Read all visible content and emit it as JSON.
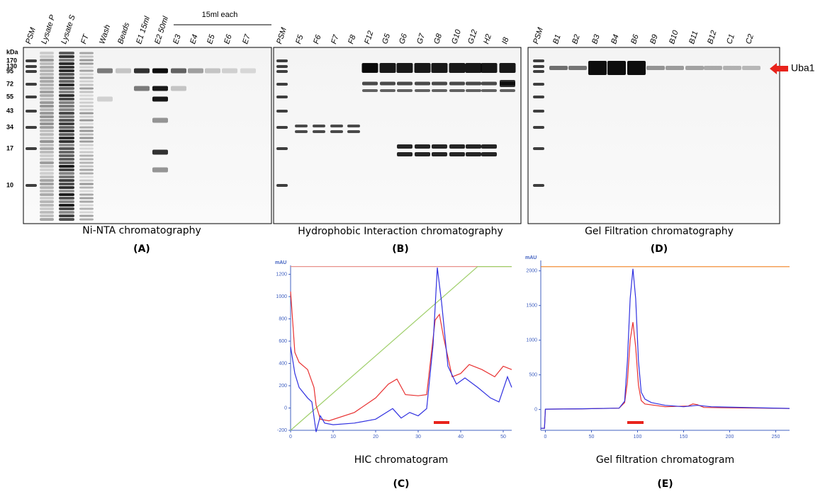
{
  "panels": {
    "A": {
      "lanes": [
        "PSM",
        "Lysate P",
        "Lysate S",
        "FT",
        "Wash",
        "Beads",
        "E1 15ml",
        "E2 50ml",
        "E3",
        "E4",
        "E5",
        "E6",
        "E7"
      ],
      "bracket_label": "15ml each",
      "markers": [
        "kDa",
        "170",
        "130",
        "95",
        "72",
        "55",
        "43",
        "34",
        "17",
        "10"
      ],
      "caption": "Ni-NTA chromatography",
      "label": "(A)"
    },
    "B": {
      "lanes": [
        "PSM",
        "F5",
        "F6",
        "F7",
        "F8",
        "F12",
        "G5",
        "G6",
        "G7",
        "G8",
        "G10",
        "G12",
        "H2",
        "I8"
      ],
      "caption": "Hydrophobic Interaction chromatography",
      "label": "(B)"
    },
    "D": {
      "lanes": [
        "PSM",
        "B1",
        "B2",
        "B3",
        "B4",
        "B6",
        "B9",
        "B10",
        "B11",
        "B12",
        "C1",
        "C2"
      ],
      "arrow_label": "Uba1",
      "caption": "Gel Filtration chromatography",
      "label": "(D)"
    }
  },
  "chart_data": [
    {
      "type": "line",
      "title": "HIC chromatogram",
      "panel_label": "(C)",
      "y_label": "mAU",
      "xlim": [
        0,
        52
      ],
      "xticks": [
        0,
        10,
        20,
        30,
        40,
        50
      ],
      "ylim": [
        -200,
        1280
      ],
      "yticks": [
        -200,
        0,
        200,
        400,
        600,
        800,
        1000,
        1200
      ],
      "series": [
        {
          "color": "#e8908a",
          "x": [
            0,
            52
          ],
          "values": [
            1270,
            1270
          ]
        },
        {
          "color": "#9fcf6a",
          "x": [
            0,
            44,
            52
          ],
          "values": [
            -200,
            1270,
            1270
          ]
        },
        {
          "color": "#e83030",
          "x": [
            0,
            1,
            2,
            4,
            5.5,
            6,
            7,
            9,
            15,
            20,
            23,
            25,
            27,
            30,
            32,
            34,
            35,
            36,
            38,
            40,
            42,
            45,
            48,
            50,
            52
          ],
          "values": [
            1045,
            500,
            410,
            345,
            185,
            25,
            -100,
            -115,
            -40,
            90,
            215,
            260,
            120,
            110,
            120,
            790,
            840,
            630,
            280,
            310,
            390,
            345,
            280,
            375,
            345
          ]
        },
        {
          "color": "#3030e0",
          "x": [
            0,
            1,
            2,
            4,
            5,
            6,
            7,
            8,
            10,
            15,
            20,
            24,
            26,
            28,
            30,
            32,
            33.5,
            34.5,
            35.5,
            37,
            39,
            41,
            44,
            47,
            49,
            51,
            52
          ],
          "values": [
            550,
            310,
            185,
            90,
            55,
            -215,
            -70,
            -135,
            -150,
            -135,
            -100,
            -5,
            -90,
            -40,
            -70,
            -5,
            565,
            1260,
            950,
            375,
            215,
            270,
            185,
            90,
            55,
            280,
            185
          ]
        }
      ]
    },
    {
      "type": "line",
      "title": "Gel filtration chromatogram",
      "panel_label": "(E)",
      "y_label": "mAU",
      "xlim": [
        -5,
        265
      ],
      "xticks": [
        0,
        50,
        100,
        150,
        200,
        250
      ],
      "ylim": [
        -300,
        2150
      ],
      "yticks": [
        0,
        500,
        1000,
        1500,
        2000
      ],
      "series": [
        {
          "color": "#f08020",
          "x": [
            -5,
            265
          ],
          "values": [
            2060,
            2060
          ]
        },
        {
          "color": "#e83030",
          "x": [
            -5,
            -1,
            0,
            40,
            80,
            86,
            89,
            92,
            95,
            98,
            101,
            104,
            108,
            130,
            155,
            160,
            165,
            172,
            265
          ],
          "values": [
            -270,
            -270,
            5,
            10,
            20,
            100,
            400,
            1000,
            1260,
            900,
            350,
            130,
            80,
            40,
            50,
            80,
            70,
            30,
            15
          ]
        },
        {
          "color": "#3030e0",
          "x": [
            -5,
            -1,
            0,
            40,
            80,
            86,
            89,
            92,
            95,
            98,
            101,
            104,
            108,
            115,
            130,
            150,
            165,
            180,
            265
          ],
          "values": [
            -270,
            -270,
            5,
            10,
            20,
            120,
            700,
            1600,
            2030,
            1600,
            700,
            250,
            150,
            100,
            60,
            40,
            60,
            40,
            15
          ]
        }
      ]
    }
  ]
}
